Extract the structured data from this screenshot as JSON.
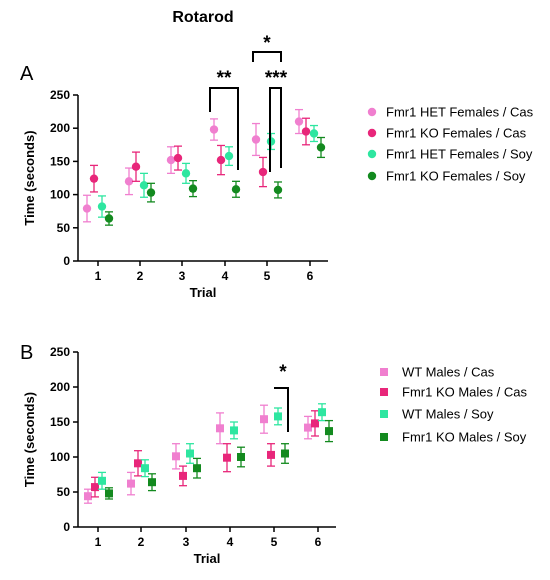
{
  "title": "Rotarod",
  "chart_data": [
    {
      "panel": "A",
      "type": "scatter",
      "xlabel": "Trial",
      "ylabel": "Time (seconds)",
      "categories": [
        "1",
        "2",
        "3",
        "4",
        "5",
        "6"
      ],
      "ylim": [
        0,
        250
      ],
      "yticks": [
        "0",
        "50",
        "100",
        "150",
        "200",
        "250"
      ],
      "marker": "circle",
      "series": [
        {
          "name": "Fmr1 HET Females / Cas",
          "color": "#f07fcf",
          "values": [
            79,
            120,
            152,
            198,
            183,
            210
          ],
          "errors": [
            20,
            20,
            20,
            16,
            24,
            18
          ]
        },
        {
          "name": "Fmr1 KO Females / Cas",
          "color": "#e8267a",
          "values": [
            124,
            142,
            155,
            152,
            134,
            195
          ],
          "errors": [
            20,
            22,
            18,
            22,
            22,
            20
          ]
        },
        {
          "name": "Fmr1 HET Females / Soy",
          "color": "#2ee6a0",
          "values": [
            82,
            114,
            132,
            158,
            180,
            192
          ],
          "errors": [
            16,
            18,
            15,
            14,
            12,
            12
          ]
        },
        {
          "name": "Fmr1 KO Females / Soy",
          "color": "#138a1f",
          "values": [
            64,
            103,
            109,
            108,
            107,
            171
          ],
          "errors": [
            10,
            14,
            12,
            12,
            12,
            15
          ]
        }
      ],
      "annotations": [
        "**",
        "*",
        "***"
      ]
    },
    {
      "panel": "B",
      "type": "scatter",
      "xlabel": "Trial",
      "ylabel": "Time (seconds)",
      "categories": [
        "1",
        "2",
        "3",
        "4",
        "5",
        "6"
      ],
      "ylim": [
        0,
        250
      ],
      "yticks": [
        "0",
        "50",
        "100",
        "150",
        "200",
        "250"
      ],
      "marker": "square",
      "series": [
        {
          "name": "WT Males / Cas",
          "color": "#f07fcf",
          "values": [
            44,
            62,
            101,
            141,
            154,
            142
          ],
          "errors": [
            10,
            16,
            18,
            22,
            20,
            16
          ]
        },
        {
          "name": "Fmr1 KO Males / Cas",
          "color": "#e8267a",
          "values": [
            57,
            91,
            73,
            99,
            103,
            148
          ],
          "errors": [
            14,
            18,
            14,
            20,
            16,
            18
          ]
        },
        {
          "name": "WT Males / Soy",
          "color": "#2ee6a0",
          "values": [
            66,
            84,
            105,
            138,
            158,
            164
          ],
          "errors": [
            12,
            12,
            14,
            12,
            12,
            12
          ]
        },
        {
          "name": "Fmr1 KO Males / Soy",
          "color": "#138a1f",
          "values": [
            48,
            64,
            84,
            100,
            105,
            137
          ],
          "errors": [
            8,
            12,
            14,
            14,
            14,
            15
          ]
        }
      ],
      "annotations": [
        "*"
      ]
    }
  ]
}
